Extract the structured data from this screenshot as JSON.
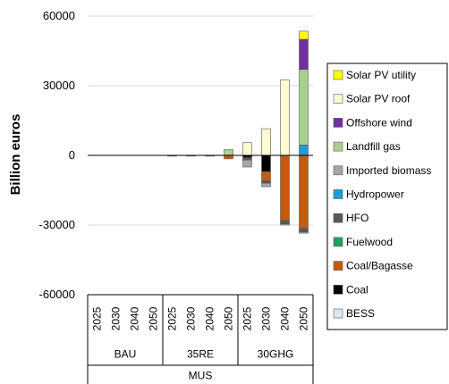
{
  "chart_data": {
    "type": "bar",
    "stacked": true,
    "title": "",
    "ylabel": "Billion euros",
    "ylim": [
      -60000,
      60000
    ],
    "yticks": [
      60000,
      30000,
      0,
      -30000,
      -60000
    ],
    "ytick_labels": [
      "60000",
      "30000",
      "0",
      "-30000",
      "-60000"
    ],
    "grid": true,
    "legend_position": "right",
    "x_hierarchy": {
      "level1": "MUS",
      "level2": [
        "BAU",
        "35RE",
        "30GHG"
      ],
      "level3": [
        "2025",
        "2030",
        "2040",
        "2050"
      ]
    },
    "categories": [
      "BAU 2025",
      "BAU 2030",
      "BAU 2040",
      "BAU 2050",
      "35RE 2025",
      "35RE 2030",
      "35RE 2040",
      "35RE 2050",
      "30GHG 2025",
      "30GHG 2030",
      "30GHG 2040",
      "30GHG 2050"
    ],
    "series": [
      {
        "name": "BESS",
        "color": "#dde6f2",
        "values": [
          0,
          0,
          0,
          0,
          0,
          0,
          0,
          0,
          0,
          0,
          0,
          0
        ]
      },
      {
        "name": "Coal",
        "color": "#000000",
        "values": [
          0,
          0,
          0,
          0,
          0,
          0,
          0,
          0,
          -1000,
          -7000,
          0,
          0
        ]
      },
      {
        "name": "Coal/Bagasse",
        "color": "#c55a11",
        "values": [
          0,
          0,
          0,
          0,
          -150,
          -100,
          -100,
          -1500,
          0,
          -4000,
          -28000,
          -31500
        ]
      },
      {
        "name": "Fuelwood",
        "color": "#1ea35b",
        "values": [
          0,
          0,
          0,
          0,
          0,
          0,
          0,
          0,
          0,
          0,
          0,
          0
        ]
      },
      {
        "name": "HFO",
        "color": "#595959",
        "values": [
          0,
          0,
          0,
          0,
          0,
          0,
          0,
          0,
          -1000,
          -1000,
          -1500,
          -1500
        ]
      },
      {
        "name": "Hydropower",
        "color": "#1a9fd9",
        "values": [
          0,
          0,
          0,
          0,
          0,
          0,
          0,
          0,
          0,
          0,
          0,
          4500
        ]
      },
      {
        "name": "Imported biomass",
        "color": "#a6a6a6",
        "values": [
          0,
          0,
          0,
          0,
          0,
          0,
          0,
          0,
          -3000,
          -1500,
          -500,
          -500
        ]
      },
      {
        "name": "Landfill gas",
        "color": "#a9d18e",
        "values": [
          0,
          0,
          0,
          0,
          0,
          0,
          0,
          2500,
          0,
          0,
          0,
          32500
        ]
      },
      {
        "name": "Offshore wind",
        "color": "#7030a0",
        "values": [
          0,
          0,
          0,
          0,
          0,
          0,
          0,
          0,
          0,
          0,
          0,
          13000
        ]
      },
      {
        "name": "Solar PV roof",
        "color": "#fdfbd4",
        "values": [
          0,
          0,
          0,
          0,
          0,
          0,
          0,
          0,
          5500,
          11500,
          32500,
          0
        ]
      },
      {
        "name": "Solar PV utility",
        "color": "#ffff00",
        "values": [
          0,
          0,
          0,
          0,
          0,
          0,
          0,
          0,
          0,
          0,
          0,
          3500
        ]
      }
    ]
  }
}
